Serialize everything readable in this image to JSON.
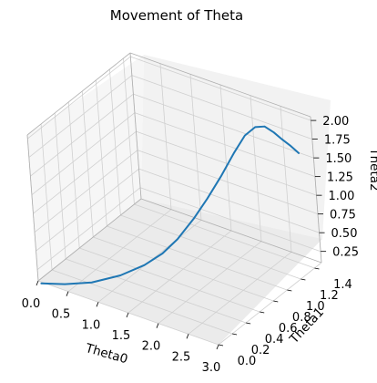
{
  "chart_data": {
    "type": "line",
    "projection": "3d",
    "title": "Movement of Theta",
    "xlabel": "Theta0",
    "ylabel": "Theta1",
    "zlabel": "Theta2",
    "xlim": [
      0.0,
      3.0
    ],
    "ylim": [
      0.0,
      1.5
    ],
    "zlim": [
      0.1,
      2.05
    ],
    "xticks": [
      "0.0",
      "0.5",
      "1.0",
      "1.5",
      "2.0",
      "2.5",
      "3.0"
    ],
    "yticks": [
      "0.0",
      "0.2",
      "0.4",
      "0.6",
      "0.8",
      "1.0",
      "1.2",
      "1.4"
    ],
    "zticks": [
      "0.25",
      "0.50",
      "0.75",
      "1.00",
      "1.25",
      "1.50",
      "1.75",
      "2.00"
    ],
    "grid": true,
    "series": [
      {
        "color": "#1f77b4",
        "x": [
          0.05,
          0.4,
          0.8,
          1.2,
          1.5,
          1.7,
          1.85,
          2.0,
          2.1,
          2.2,
          2.3,
          2.4,
          2.5,
          2.6,
          2.7,
          2.8,
          2.9,
          3.0
        ],
        "y": [
          0.0,
          0.04,
          0.09,
          0.17,
          0.27,
          0.37,
          0.47,
          0.6,
          0.72,
          0.85,
          0.97,
          1.06,
          1.13,
          1.18,
          1.22,
          1.25,
          1.28,
          1.3
        ],
        "z": [
          0.08,
          0.14,
          0.24,
          0.39,
          0.54,
          0.68,
          0.84,
          1.07,
          1.27,
          1.5,
          1.75,
          1.95,
          2.04,
          2.04,
          1.96,
          1.87,
          1.79,
          1.71
        ]
      }
    ]
  }
}
